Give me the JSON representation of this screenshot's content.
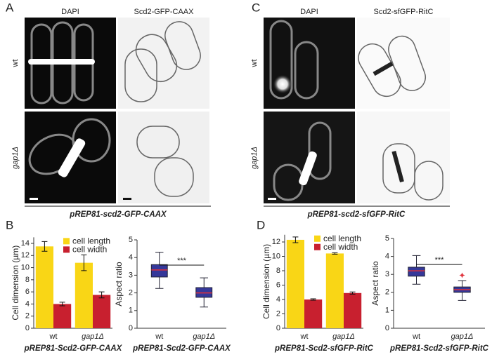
{
  "panels": [
    {
      "letter": "A",
      "columns": [
        "DAPI",
        "Scd2-GFP-CAAX"
      ],
      "rows": [
        "wt",
        "gap1Δ"
      ],
      "caption": "pREP81-scd2-GFP-CAAX"
    },
    {
      "letter": "C",
      "columns": [
        "DAPI",
        "Scd2-sfGFP-RitC"
      ],
      "rows": [
        "wt",
        "gap1Δ"
      ],
      "caption": "pREP81-scd2-sfGFP-RitC"
    }
  ],
  "chart_data": [
    {
      "type": "bar",
      "panel": "B",
      "y_label": "Cell dimension (µm)",
      "x_label": "pREP81-Scd2-GFP-CAAX",
      "categories": [
        "wt",
        "gap1Δ"
      ],
      "series": [
        {
          "name": "cell length",
          "color": "#f9d616",
          "values": [
            13.5,
            10.8
          ],
          "errors": [
            0.8,
            1.3
          ]
        },
        {
          "name": "cell width",
          "color": "#c8202f",
          "values": [
            4.0,
            5.5
          ],
          "errors": [
            0.3,
            0.5
          ]
        }
      ],
      "ylim": [
        0,
        15
      ],
      "yticks": [
        0,
        2,
        4,
        6,
        8,
        10,
        12,
        14
      ]
    },
    {
      "type": "box",
      "y_label": "Aspect ratio",
      "x_label": "pREP81-Scd2-GFP-CAAX",
      "categories": [
        "wt",
        "gap1Δ"
      ],
      "color": "#35389a",
      "median_color": "#e0303a",
      "whisker_low": [
        2.25,
        1.2
      ],
      "q1": [
        2.9,
        1.75
      ],
      "median": [
        3.3,
        2.0
      ],
      "q3": [
        3.6,
        2.3
      ],
      "whisker_high": [
        4.3,
        2.85
      ],
      "significance": {
        "label": "***",
        "y": 3.57
      },
      "ylim": [
        0,
        5
      ],
      "yticks": [
        0,
        1,
        2,
        3,
        4,
        5
      ]
    },
    {
      "type": "bar",
      "panel": "D",
      "y_label": "Cell dimension (µm)",
      "x_label": "pREP81-Scd2-sfGFP-RitC",
      "categories": [
        "wt",
        "gap1Δ"
      ],
      "series": [
        {
          "name": "cell length",
          "color": "#f9d616",
          "values": [
            12.3,
            10.4
          ],
          "errors": [
            0.4,
            0.1
          ]
        },
        {
          "name": "cell width",
          "color": "#c8202f",
          "values": [
            4.0,
            4.9
          ],
          "errors": [
            0.1,
            0.15
          ]
        }
      ],
      "ylim": [
        0,
        13
      ],
      "yticks": [
        0,
        2,
        4,
        6,
        8,
        10,
        12
      ]
    },
    {
      "type": "box",
      "y_label": "Aspect ratio",
      "x_label": "pREP81-Scd2-sfGFP-RitC",
      "categories": [
        "wt",
        "gap1Δ"
      ],
      "color": "#35389a",
      "median_color": "#e0303a",
      "whisker_low": [
        2.45,
        1.55
      ],
      "q1": [
        2.9,
        2.0
      ],
      "median": [
        3.2,
        2.15
      ],
      "q3": [
        3.4,
        2.3
      ],
      "whisker_high": [
        4.05,
        2.65
      ],
      "outliers": [
        [],
        [
          2.95
        ]
      ],
      "significance": {
        "label": "***",
        "y": 3.55
      },
      "ylim": [
        0,
        5
      ],
      "yticks": [
        0,
        1,
        2,
        3,
        4,
        5
      ]
    }
  ]
}
